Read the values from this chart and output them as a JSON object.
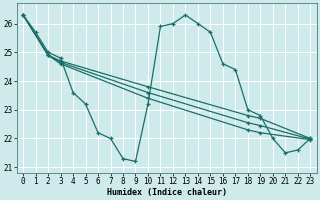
{
  "xlabel": "Humidex (Indice chaleur)",
  "bg_color": "#ceeaea",
  "grid_color": "#ffffff",
  "line_color": "#1a6e6a",
  "marker": "+",
  "markersize": 3.5,
  "linewidth": 0.9,
  "markeredgewidth": 0.9,
  "xlim": [
    -0.5,
    23.5
  ],
  "ylim": [
    20.8,
    26.7
  ],
  "yticks": [
    21,
    22,
    23,
    24,
    25,
    26
  ],
  "xticks": [
    0,
    1,
    2,
    3,
    4,
    5,
    6,
    7,
    8,
    9,
    10,
    11,
    12,
    13,
    14,
    15,
    16,
    17,
    18,
    19,
    20,
    21,
    22,
    23
  ],
  "xlabel_fontsize": 6.0,
  "tick_fontsize": 5.5,
  "series": [
    {
      "x": [
        0,
        1,
        2,
        3,
        4,
        5,
        6,
        7,
        8,
        9,
        10,
        11,
        12,
        13,
        14,
        15,
        16,
        17,
        18,
        19,
        20,
        21,
        22,
        23
      ],
      "y": [
        26.3,
        25.7,
        25.0,
        24.8,
        23.6,
        23.2,
        22.2,
        22.0,
        21.3,
        21.2,
        23.2,
        25.9,
        26.0,
        26.3,
        26.0,
        25.7,
        24.6,
        24.4,
        23.0,
        22.8,
        22.0,
        21.5,
        21.6,
        22.0
      ]
    },
    {
      "x": [
        0,
        2,
        3,
        10,
        18,
        19,
        23
      ],
      "y": [
        26.3,
        24.9,
        24.7,
        23.8,
        22.8,
        22.7,
        22.0
      ]
    },
    {
      "x": [
        0,
        2,
        3,
        10,
        18,
        19,
        23
      ],
      "y": [
        26.3,
        24.9,
        24.65,
        23.6,
        22.55,
        22.45,
        21.98
      ]
    },
    {
      "x": [
        0,
        2,
        3,
        10,
        18,
        19,
        23
      ],
      "y": [
        26.3,
        24.9,
        24.6,
        23.4,
        22.3,
        22.2,
        21.96
      ]
    }
  ]
}
